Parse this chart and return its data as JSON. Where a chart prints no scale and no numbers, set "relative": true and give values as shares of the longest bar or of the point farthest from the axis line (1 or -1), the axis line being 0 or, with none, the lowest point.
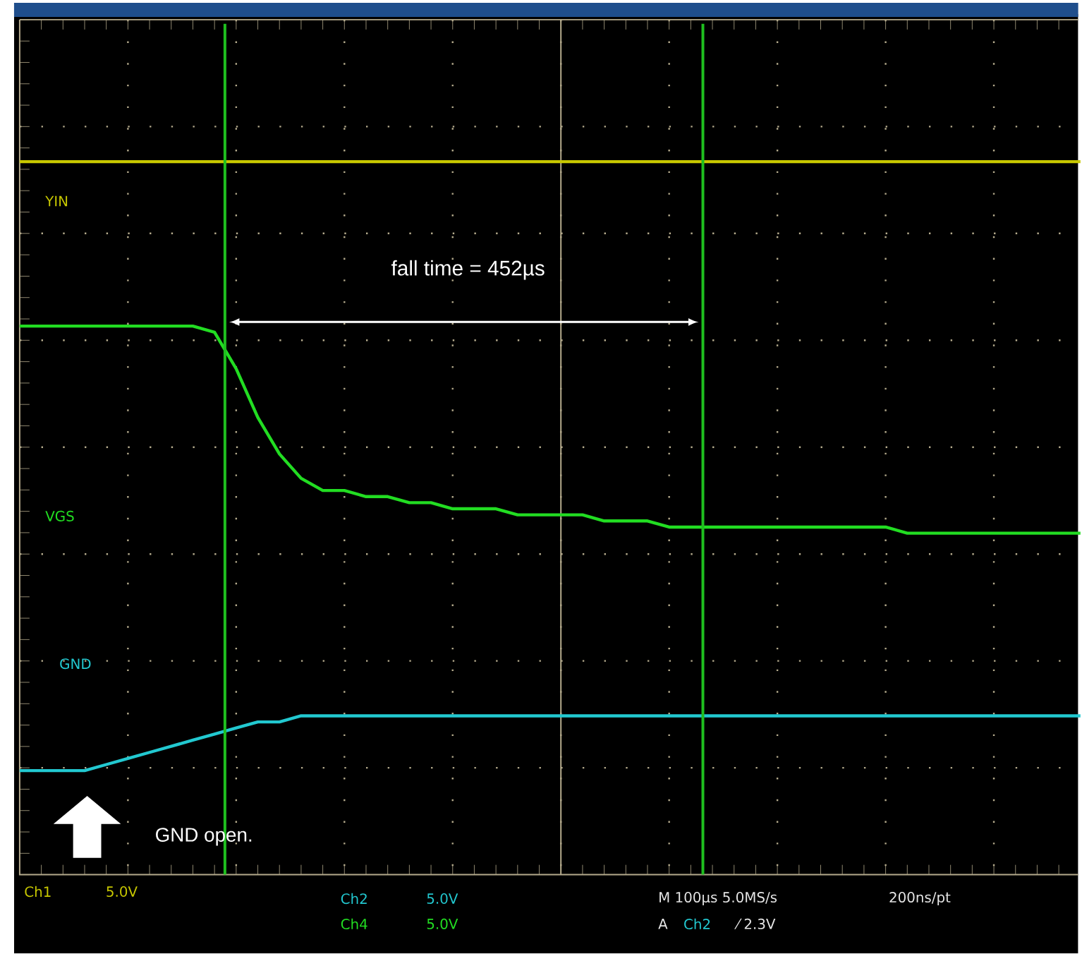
{
  "chart_data": {
    "type": "line",
    "relative": true,
    "grid": true,
    "categories": [
      null,
      null,
      null,
      null,
      null,
      null,
      null,
      null,
      null,
      null,
      null,
      null,
      null,
      null,
      null,
      null,
      null,
      null,
      null,
      null,
      null,
      null,
      null,
      null,
      null,
      null,
      null,
      null,
      null,
      null,
      null,
      null,
      null,
      null,
      null,
      null,
      null,
      null,
      null,
      null,
      null,
      null,
      null,
      null,
      null,
      null,
      null,
      null,
      null,
      null
    ],
    "series": [
      {
        "name": "YIN",
        "color": "#c8c800",
        "values": [
          1,
          1,
          1,
          1,
          1,
          1,
          1,
          1,
          1,
          1,
          1,
          1,
          1,
          1,
          1,
          1,
          1,
          1,
          1,
          1,
          1,
          1,
          1,
          1,
          1,
          1,
          1,
          1,
          1,
          1,
          1,
          1,
          1,
          1,
          1,
          1,
          1,
          1,
          1,
          1,
          1,
          1,
          1,
          1,
          1,
          1,
          1,
          1,
          1,
          1
        ]
      },
      {
        "name": "VGS",
        "color": "#22dd22",
        "values": [
          0.73,
          0.73,
          0.73,
          0.73,
          0.73,
          0.73,
          0.73,
          0.73,
          0.73,
          0.72,
          0.66,
          0.58,
          0.52,
          0.48,
          0.46,
          0.46,
          0.45,
          0.45,
          0.44,
          0.44,
          0.43,
          0.43,
          0.43,
          0.42,
          0.42,
          0.42,
          0.42,
          0.41,
          0.41,
          0.41,
          0.4,
          0.4,
          0.4,
          0.4,
          0.4,
          0.4,
          0.4,
          0.4,
          0.4,
          0.4,
          0.4,
          0.39,
          0.39,
          0.39,
          0.39,
          0.39,
          0.39,
          0.39,
          0.39,
          0.39
        ]
      },
      {
        "name": "GND",
        "color": "#22c8d0",
        "values": [
          0,
          0,
          0,
          0,
          0.01,
          0.02,
          0.03,
          0.04,
          0.05,
          0.06,
          0.07,
          0.08,
          0.08,
          0.09,
          0.09,
          0.09,
          0.09,
          0.09,
          0.09,
          0.09,
          0.09,
          0.09,
          0.09,
          0.09,
          0.09,
          0.09,
          0.09,
          0.09,
          0.09,
          0.09,
          0.09,
          0.09,
          0.09,
          0.09,
          0.09,
          0.09,
          0.09,
          0.09,
          0.09,
          0.09,
          0.09,
          0.09,
          0.09,
          0.09,
          0.09,
          0.09,
          0.09,
          0.09,
          0.09,
          0.09
        ]
      }
    ],
    "annotations": [
      "fall time = 452µs",
      "GND open.",
      "Ch1",
      "5.0V",
      "Ch2",
      "5.0V",
      "Ch4",
      "5.0V",
      "M 100µs 5.0MS/s",
      "200ns/pt",
      "A",
      "Ch2",
      "⁄ 2.3V"
    ]
  }
}
